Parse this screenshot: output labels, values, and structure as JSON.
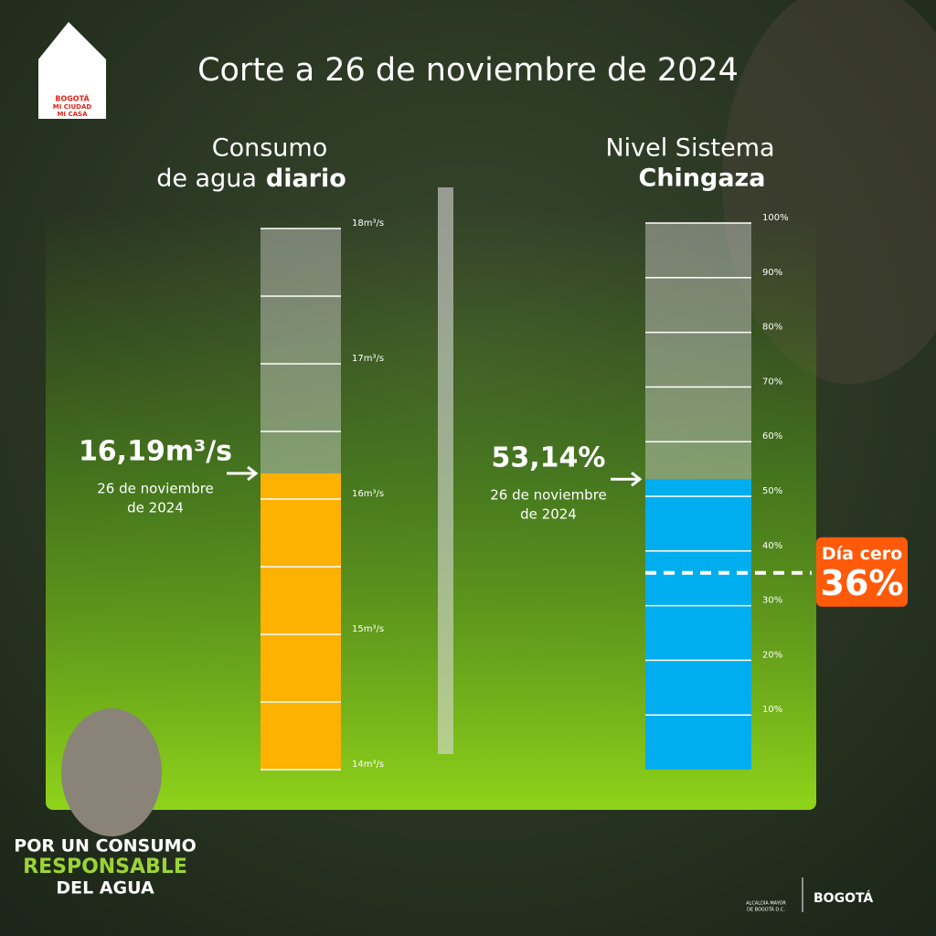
{
  "header": {
    "title": "Corte a 26 de noviembre de 2024"
  },
  "logo": {
    "lines": [
      "BOGOTÁ",
      "MI CIUDAD",
      "MI CASA"
    ]
  },
  "chart_data": [
    {
      "type": "gauge",
      "title": [
        "Consumo",
        "de agua",
        "diario"
      ],
      "values": [
        16.19
      ],
      "value_labels": [
        "16,19m³/s"
      ],
      "annotation": [
        "26 de noviembre",
        "de 2024"
      ],
      "color": "#fdb100",
      "ylim": [
        14,
        18
      ],
      "yticks": [
        {
          "value": 14,
          "label": "14m³/s"
        },
        {
          "value": 15,
          "label": "15m³/s"
        },
        {
          "value": 16,
          "label": "16m³/s"
        },
        {
          "value": 17,
          "label": "17m³/s"
        },
        {
          "value": 18,
          "label": "18m³/s"
        }
      ],
      "minor_yticks": [
        14.5,
        15.5,
        16.5,
        17.5
      ],
      "grid": true
    },
    {
      "type": "gauge",
      "title": [
        "Nivel Sistema",
        "Chingaza"
      ],
      "values": [
        53.14
      ],
      "value_labels": [
        "53,14%"
      ],
      "annotation": [
        "26 de noviembre",
        "de 2024"
      ],
      "color": "#00aeef",
      "ylim": [
        0,
        100
      ],
      "yticks": [
        {
          "value": 10,
          "label": "10%"
        },
        {
          "value": 20,
          "label": "20%"
        },
        {
          "value": 30,
          "label": "30%"
        },
        {
          "value": 40,
          "label": "40%"
        },
        {
          "value": 50,
          "label": "50%"
        },
        {
          "value": 60,
          "label": "60%"
        },
        {
          "value": 70,
          "label": "70%"
        },
        {
          "value": 80,
          "label": "80%"
        },
        {
          "value": 90,
          "label": "90%"
        },
        {
          "value": 100,
          "label": "100%"
        }
      ],
      "grid": true,
      "threshold": {
        "value": 36,
        "name": "Día cero",
        "label": "36%",
        "color": "#ff5a0a"
      }
    }
  ],
  "footer": {
    "slogan": [
      "POR UN CONSUMO",
      "RESPONSABLE",
      "DEL AGUA"
    ],
    "institution": [
      "ALCALDÍA MAYOR",
      "DE BOGOTÁ D.C."
    ],
    "brand": "BOGOTÁ"
  }
}
